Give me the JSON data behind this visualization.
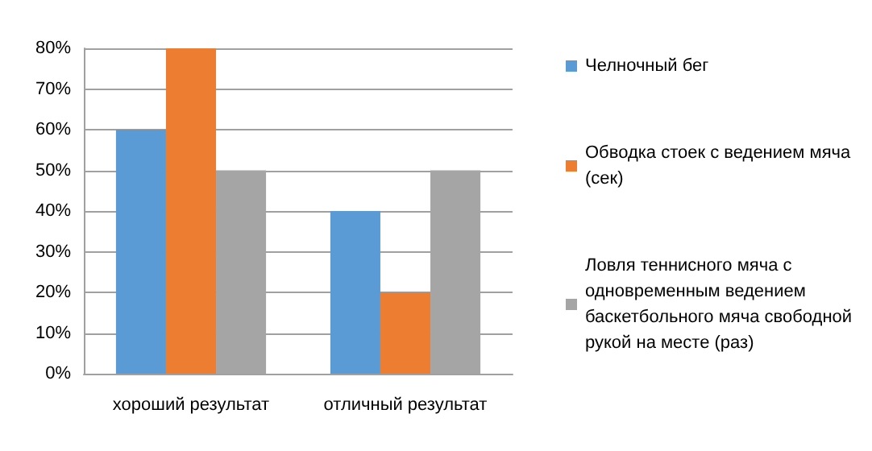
{
  "chart_data": {
    "type": "bar",
    "categories": [
      "хороший результат",
      "отличный результат"
    ],
    "series": [
      {
        "name": "Челночный бег",
        "color": "#5b9bd5",
        "values": [
          60,
          40
        ]
      },
      {
        "name": "Обводка стоек с ведением мяча (сек)",
        "color": "#ed7d31",
        "values": [
          80,
          20
        ]
      },
      {
        "name": "Ловля теннисного мяча с одновременным ведением баскетбольного мяча свободной рукой на месте (раз)",
        "color": "#a5a5a5",
        "values": [
          50,
          50
        ]
      }
    ],
    "ylim": [
      0,
      80
    ],
    "yticks": [
      {
        "value": 0,
        "label": "0%"
      },
      {
        "value": 10,
        "label": "10%"
      },
      {
        "value": 20,
        "label": "20%"
      },
      {
        "value": 30,
        "label": "30%"
      },
      {
        "value": 40,
        "label": "40%"
      },
      {
        "value": 50,
        "label": "50%"
      },
      {
        "value": 60,
        "label": "60%"
      },
      {
        "value": 70,
        "label": "70%"
      },
      {
        "value": 80,
        "label": "80%"
      }
    ],
    "grid": "y",
    "legend": "right"
  }
}
